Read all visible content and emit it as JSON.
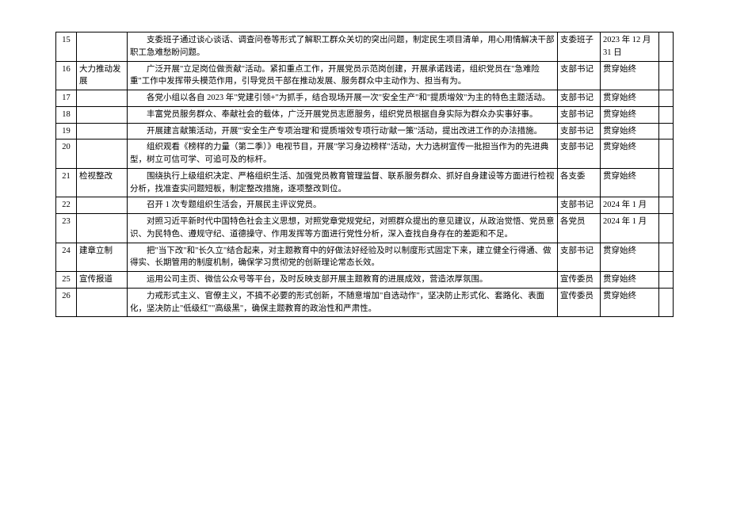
{
  "rows": [
    {
      "num": "15",
      "category": "",
      "content": "支委班子通过谈心谈话、调查问卷等形式了解职工群众关切的突出问题，制定民生项目清单，用心用情解决干部职工急难愁盼问题。",
      "resp": "支委班子",
      "time": "2023 年 12 月 31 日"
    },
    {
      "num": "16",
      "category": "大力推动发展",
      "content": "广泛开展\"立足岗位做贡献\"活动。紧扣重点工作，开展党员示范岗创建，开展承诺践诺，组织党员在\"急难险重\"工作中发挥带头模范作用，引导党员干部在推动发展、服务群众中主动作为、担当有为。",
      "resp": "支部书记",
      "time": "贯穿始终"
    },
    {
      "num": "17",
      "category": "",
      "content": "各党小组以各自 2023 年\"党建引领+\"为抓手，结合现场开展一次\"安全生产\"和\"提质增效\"为主的特色主题活动。",
      "resp": "支部书记",
      "time": "贯穿始终"
    },
    {
      "num": "18",
      "category": "",
      "content": "丰富党员服务群众、奉献社会的载体，广泛开展党员志愿服务，组织党员根据自身实际为群众办实事好事。",
      "resp": "支部书记",
      "time": "贯穿始终"
    },
    {
      "num": "19",
      "category": "",
      "content": "开展建言献策活动，开展\"'安全生产专项治理'和'提质增效专项行动'献一策\"活动，提出改进工作的办法措施。",
      "resp": "支部书记",
      "time": "贯穿始终"
    },
    {
      "num": "20",
      "category": "",
      "content": "组织观看《榜样的力量（第二季）》电视节目，开展\"学习身边榜样\"活动，大力选树宣传一批担当作为的先进典型，树立可信可学、可追可及的标杆。",
      "resp": "支部书记",
      "time": "贯穿始终"
    },
    {
      "num": "21",
      "category": "检视整改",
      "content": "围绕执行上级组织决定、严格组织生活、加强党员教育管理监督、联系服务群众、抓好自身建设等方面进行检视分析，找准查实问题短板，制定整改措施，逐项整改到位。",
      "resp": "各支委",
      "time": "贯穿始终"
    },
    {
      "num": "22",
      "category": "",
      "content": "召开 1 次专题组织生活会，开展民主评议党员。",
      "resp": "支部书记",
      "time": "2024 年 1 月"
    },
    {
      "num": "23",
      "category": "",
      "content": "对照习近平新时代中国特色社会主义思想，对照党章党规党纪，对照群众提出的意见建议，从政治觉悟、党员意识、为民特色、遵规守纪、道德操守、作用发挥等方面进行党性分析，深入查找自身存在的差距和不足。",
      "resp": "各党员",
      "time": "2024 年 1 月"
    },
    {
      "num": "24",
      "category": "建章立制",
      "content": "把\"当下改\"和\"长久立\"结合起来，对主题教育中的好做法好经验及时以制度形式固定下来，建立健全行得通、做得实、长期管用的制度机制，确保学习贯彻党的创新理论常态长效。",
      "resp": "支部书记",
      "time": "贯穿始终"
    },
    {
      "num": "25",
      "category": "宣传报道",
      "content": "运用公司主页、微信公众号等平台，及时反映支部开展主题教育的进展成效，营造浓厚氛围。",
      "resp": "宣传委员",
      "time": "贯穿始终"
    },
    {
      "num": "26",
      "category": "",
      "content": "力戒形式主义、官僚主义，不搞不必要的形式创新，不随意增加\"自选动作\"，坚决防止形式化、套路化、表面化，坚决防止\"低级红\"\"高级黑\"，确保主题教育的政治性和严肃性。",
      "resp": "宣传委员",
      "time": "贯穿始终"
    }
  ]
}
